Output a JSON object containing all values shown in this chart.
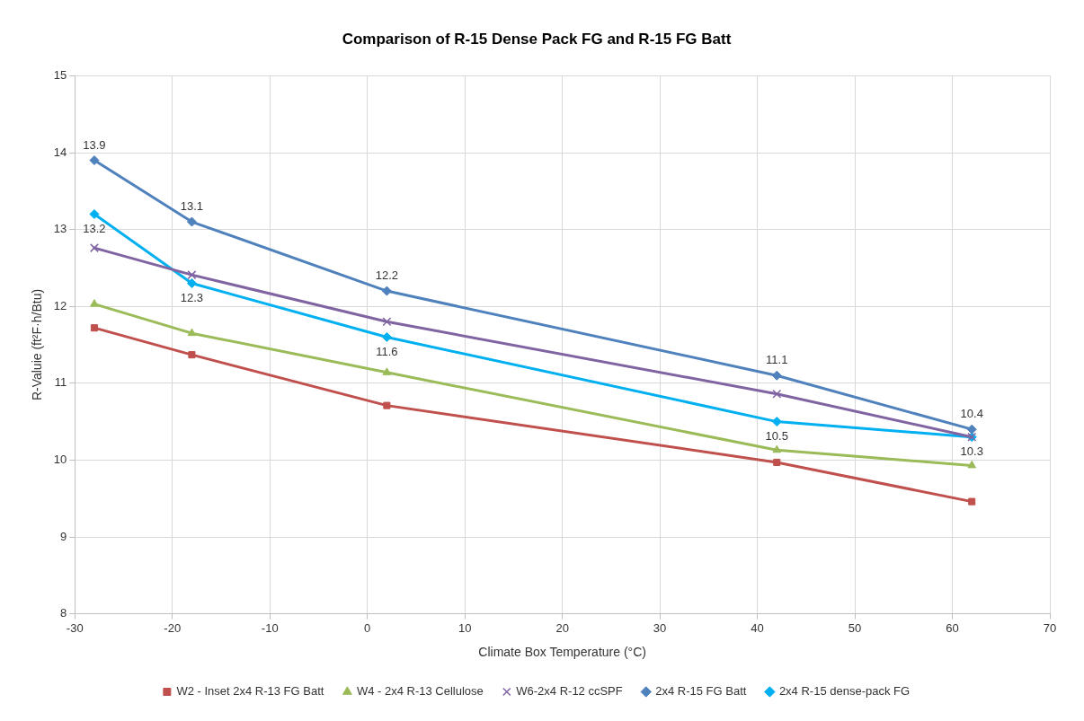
{
  "chart_data": {
    "type": "line",
    "title": "Comparison of R-15 Dense Pack FG and R-15 FG Batt",
    "xlabel": "Climate Box Temperature (°C)",
    "ylabel": "R-Valuie (ft²F·h/Btu)",
    "x": [
      -28,
      -18,
      2,
      42,
      62
    ],
    "series": [
      {
        "name": "W2 - Inset 2x4 R-13 FG Batt",
        "color": "#c0504d",
        "marker": "square",
        "values": [
          11.72,
          11.37,
          10.71,
          9.97,
          9.46
        ]
      },
      {
        "name": "W4 - 2x4 R-13 Cellulose",
        "color": "#9bbb59",
        "marker": "triangle",
        "values": [
          12.03,
          11.65,
          11.14,
          10.13,
          9.93
        ]
      },
      {
        "name": "W6-2x4 R-12 ccSPF",
        "color": "#8064a2",
        "marker": "cross",
        "values": [
          12.76,
          12.41,
          11.8,
          10.86,
          10.3
        ]
      },
      {
        "name": "2x4 R-15 FG Batt",
        "color": "#4f81bd",
        "marker": "diamond",
        "values": [
          13.9,
          13.1,
          12.2,
          11.1,
          10.4
        ],
        "value_labels": [
          "13.9",
          "13.1",
          "12.2",
          "11.1",
          "10.4"
        ]
      },
      {
        "name": "2x4 R-15 dense-pack FG",
        "color": "#00b0f0",
        "marker": "diamond",
        "values": [
          13.2,
          12.3,
          11.6,
          10.5,
          10.3
        ],
        "value_labels": [
          "13.2",
          "12.3",
          "11.6",
          "10.5",
          "10.3"
        ]
      }
    ],
    "xlim": [
      -30,
      70
    ],
    "xticks": [
      -30,
      -20,
      -10,
      0,
      10,
      20,
      30,
      40,
      50,
      60,
      70
    ],
    "ylim": [
      8,
      15
    ],
    "yticks": [
      8,
      9,
      10,
      11,
      12,
      13,
      14,
      15
    ],
    "grid": true,
    "legend": "bottom"
  }
}
